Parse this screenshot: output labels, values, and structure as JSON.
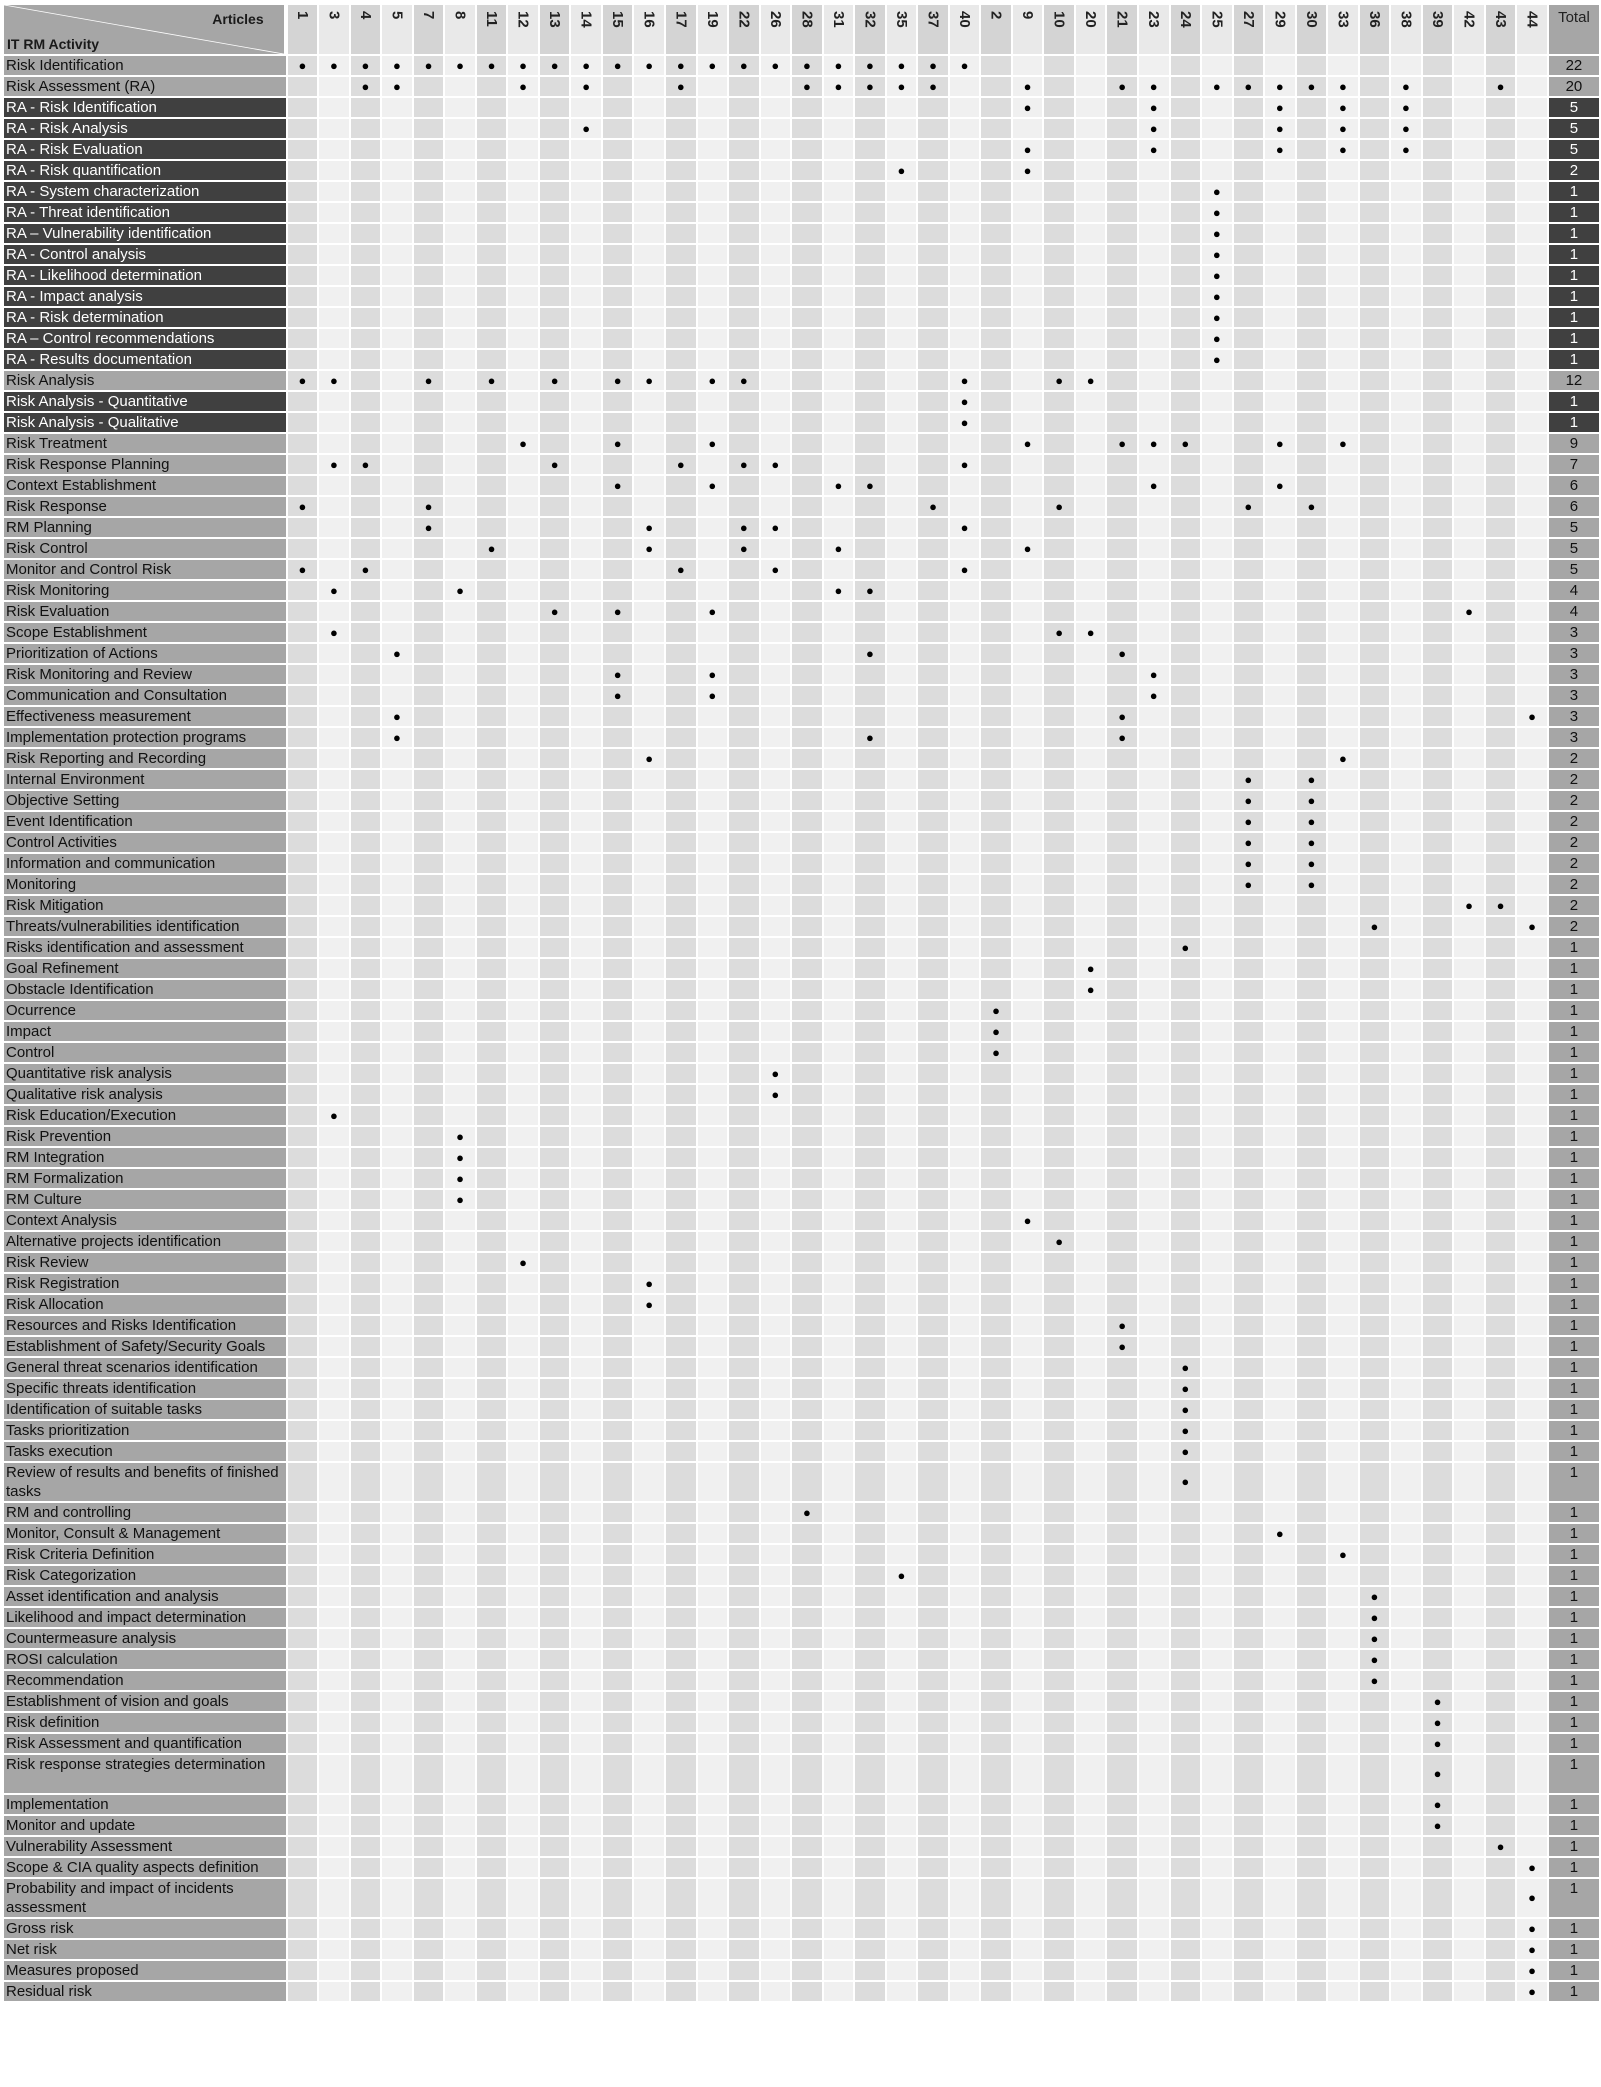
{
  "header": {
    "articles_label": "Articles",
    "activity_label": "IT RM Activity",
    "total_label": "Total"
  },
  "columns": [
    "1",
    "3",
    "4",
    "5",
    "7",
    "8",
    "11",
    "12",
    "13",
    "14",
    "15",
    "16",
    "17",
    "19",
    "22",
    "26",
    "28",
    "31",
    "32",
    "35",
    "37",
    "40",
    "2",
    "9",
    "10",
    "20",
    "21",
    "23",
    "24",
    "25",
    "27",
    "29",
    "30",
    "33",
    "36",
    "38",
    "39",
    "42",
    "43",
    "44"
  ],
  "dot_symbol": "●",
  "colors": {
    "header_gray": "#a6a6a6",
    "dark_row": "#404040",
    "cell_dark": "#dcdcdc",
    "cell_light": "#f0f0f0"
  },
  "rows": [
    {
      "label": "Risk Identification",
      "dark": false,
      "total": "22",
      "dots": [
        1,
        3,
        4,
        5,
        7,
        8,
        11,
        12,
        13,
        14,
        15,
        16,
        17,
        19,
        22,
        26,
        28,
        31,
        32,
        35,
        37,
        40
      ]
    },
    {
      "label": "Risk Assessment (RA)",
      "dark": false,
      "total": "20",
      "dots": [
        4,
        5,
        12,
        14,
        17,
        28,
        31,
        32,
        35,
        37,
        9,
        21,
        23,
        25,
        27,
        29,
        30,
        33,
        38,
        43
      ]
    },
    {
      "label": "RA - Risk Identification",
      "dark": true,
      "total": "5",
      "dots": [
        9,
        23,
        29,
        33,
        38
      ]
    },
    {
      "label": "RA - Risk Analysis",
      "dark": true,
      "total": "5",
      "dots": [
        14,
        23,
        29,
        33,
        38
      ]
    },
    {
      "label": "RA - Risk Evaluation",
      "dark": true,
      "total": "5",
      "dots": [
        9,
        23,
        29,
        33,
        38
      ]
    },
    {
      "label": "RA - Risk quantification",
      "dark": true,
      "total": "2",
      "dots": [
        35,
        9
      ]
    },
    {
      "label": "RA - System characterization",
      "dark": true,
      "total": "1",
      "dots": [
        25
      ]
    },
    {
      "label": "RA - Threat identification",
      "dark": true,
      "total": "1",
      "dots": [
        25
      ]
    },
    {
      "label": "RA – Vulnerability identification",
      "dark": true,
      "total": "1",
      "dots": [
        25
      ]
    },
    {
      "label": "RA - Control analysis",
      "dark": true,
      "total": "1",
      "dots": [
        25
      ]
    },
    {
      "label": "RA - Likelihood determination",
      "dark": true,
      "total": "1",
      "dots": [
        25
      ]
    },
    {
      "label": "RA - Impact analysis",
      "dark": true,
      "total": "1",
      "dots": [
        25
      ]
    },
    {
      "label": "RA - Risk determination",
      "dark": true,
      "total": "1",
      "dots": [
        25
      ]
    },
    {
      "label": "RA – Control recommendations",
      "dark": true,
      "total": "1",
      "dots": [
        25
      ]
    },
    {
      "label": "RA - Results documentation",
      "dark": true,
      "total": "1",
      "dots": [
        25
      ]
    },
    {
      "label": "Risk Analysis",
      "dark": false,
      "total": "12",
      "dots": [
        1,
        3,
        7,
        11,
        13,
        15,
        16,
        19,
        22,
        40,
        10,
        20
      ]
    },
    {
      "label": "Risk Analysis - Quantitative",
      "dark": true,
      "total": "1",
      "dots": [
        40
      ]
    },
    {
      "label": "Risk Analysis - Qualitative",
      "dark": true,
      "total": "1",
      "dots": [
        40
      ]
    },
    {
      "label": "Risk Treatment",
      "dark": false,
      "total": "9",
      "dots": [
        12,
        15,
        19,
        9,
        21,
        23,
        24,
        29,
        33
      ]
    },
    {
      "label": "Risk Response Planning",
      "dark": false,
      "total": "7",
      "dots": [
        3,
        4,
        13,
        17,
        22,
        26,
        40
      ]
    },
    {
      "label": "Context Establishment",
      "dark": false,
      "total": "6",
      "dots": [
        15,
        19,
        31,
        32,
        23,
        29
      ]
    },
    {
      "label": "Risk Response",
      "dark": false,
      "total": "6",
      "dots": [
        1,
        7,
        37,
        10,
        27,
        30
      ]
    },
    {
      "label": "RM Planning",
      "dark": false,
      "total": "5",
      "dots": [
        7,
        16,
        22,
        26,
        40
      ]
    },
    {
      "label": "Risk Control",
      "dark": false,
      "total": "5",
      "dots": [
        11,
        16,
        22,
        31,
        9
      ]
    },
    {
      "label": "Monitor and Control Risk",
      "dark": false,
      "total": "5",
      "dots": [
        1,
        4,
        17,
        26,
        40
      ]
    },
    {
      "label": "Risk Monitoring",
      "dark": false,
      "total": "4",
      "dots": [
        3,
        8,
        31,
        32
      ]
    },
    {
      "label": "Risk Evaluation",
      "dark": false,
      "total": "4",
      "dots": [
        13,
        15,
        19,
        42
      ]
    },
    {
      "label": "Scope Establishment",
      "dark": false,
      "total": "3",
      "dots": [
        3,
        10,
        20
      ]
    },
    {
      "label": "Prioritization of Actions",
      "dark": false,
      "total": "3",
      "dots": [
        5,
        32,
        21
      ]
    },
    {
      "label": "Risk Monitoring and Review",
      "dark": false,
      "total": "3",
      "dots": [
        15,
        19,
        23
      ]
    },
    {
      "label": "Communication and Consultation",
      "dark": false,
      "total": "3",
      "dots": [
        15,
        19,
        23
      ]
    },
    {
      "label": "Effectiveness measurement",
      "dark": false,
      "total": "3",
      "dots": [
        5,
        21,
        44
      ]
    },
    {
      "label": "Implementation protection programs",
      "dark": false,
      "total": "3",
      "dots": [
        5,
        32,
        21
      ]
    },
    {
      "label": "Risk Reporting and Recording",
      "dark": false,
      "total": "2",
      "dots": [
        16,
        33
      ]
    },
    {
      "label": "Internal Environment",
      "dark": false,
      "total": "2",
      "dots": [
        27,
        30
      ]
    },
    {
      "label": "Objective Setting",
      "dark": false,
      "total": "2",
      "dots": [
        27,
        30
      ]
    },
    {
      "label": "Event Identification",
      "dark": false,
      "total": "2",
      "dots": [
        27,
        30
      ]
    },
    {
      "label": "Control Activities",
      "dark": false,
      "total": "2",
      "dots": [
        27,
        30
      ]
    },
    {
      "label": "Information and communication",
      "dark": false,
      "total": "2",
      "dots": [
        27,
        30
      ]
    },
    {
      "label": "Monitoring",
      "dark": false,
      "total": "2",
      "dots": [
        27,
        30
      ]
    },
    {
      "label": "Risk Mitigation",
      "dark": false,
      "total": "2",
      "dots": [
        42,
        43
      ]
    },
    {
      "label": "Threats/vulnerabilities identification",
      "dark": false,
      "total": "2",
      "dots": [
        36,
        44
      ]
    },
    {
      "label": "Risks identification and assessment",
      "dark": false,
      "total": "1",
      "dots": [
        24
      ]
    },
    {
      "label": "Goal Refinement",
      "dark": false,
      "total": "1",
      "dots": [
        20
      ]
    },
    {
      "label": "Obstacle Identification",
      "dark": false,
      "total": "1",
      "dots": [
        20
      ]
    },
    {
      "label": "Ocurrence",
      "dark": false,
      "total": "1",
      "dots": [
        2
      ]
    },
    {
      "label": "Impact",
      "dark": false,
      "total": "1",
      "dots": [
        2
      ]
    },
    {
      "label": "Control",
      "dark": false,
      "total": "1",
      "dots": [
        2
      ]
    },
    {
      "label": "Quantitative risk analysis",
      "dark": false,
      "total": "1",
      "dots": [
        26
      ]
    },
    {
      "label": "Qualitative risk analysis",
      "dark": false,
      "total": "1",
      "dots": [
        26
      ]
    },
    {
      "label": "Risk Education/Execution",
      "dark": false,
      "total": "1",
      "dots": [
        3
      ]
    },
    {
      "label": "Risk Prevention",
      "dark": false,
      "total": "1",
      "dots": [
        8
      ]
    },
    {
      "label": "RM Integration",
      "dark": false,
      "total": "1",
      "dots": [
        8
      ]
    },
    {
      "label": "RM Formalization",
      "dark": false,
      "total": "1",
      "dots": [
        8
      ]
    },
    {
      "label": "RM Culture",
      "dark": false,
      "total": "1",
      "dots": [
        8
      ]
    },
    {
      "label": "Context Analysis",
      "dark": false,
      "total": "1",
      "dots": [
        9
      ]
    },
    {
      "label": "Alternative projects identification",
      "dark": false,
      "total": "1",
      "dots": [
        10
      ]
    },
    {
      "label": "Risk Review",
      "dark": false,
      "total": "1",
      "dots": [
        12
      ]
    },
    {
      "label": "Risk Registration",
      "dark": false,
      "total": "1",
      "dots": [
        16
      ]
    },
    {
      "label": "Risk Allocation",
      "dark": false,
      "total": "1",
      "dots": [
        16
      ]
    },
    {
      "label": "Resources and Risks Identification",
      "dark": false,
      "total": "1",
      "dots": [
        21
      ]
    },
    {
      "label": "Establishment of Safety/Security Goals",
      "dark": false,
      "total": "1",
      "dots": [
        21
      ]
    },
    {
      "label": "General threat scenarios identification",
      "dark": false,
      "total": "1",
      "dots": [
        24
      ]
    },
    {
      "label": "Specific threats identification",
      "dark": false,
      "total": "1",
      "dots": [
        24
      ]
    },
    {
      "label": "Identification of suitable tasks",
      "dark": false,
      "total": "1",
      "dots": [
        24
      ]
    },
    {
      "label": "Tasks prioritization",
      "dark": false,
      "total": "1",
      "dots": [
        24
      ]
    },
    {
      "label": "Tasks execution",
      "dark": false,
      "total": "1",
      "dots": [
        24
      ]
    },
    {
      "label": "Review of results and benefits of finished tasks",
      "dark": false,
      "total": "1",
      "dots": [
        24
      ],
      "tall": true
    },
    {
      "label": "RM and controlling",
      "dark": false,
      "total": "1",
      "dots": [
        28
      ]
    },
    {
      "label": "Monitor, Consult & Management",
      "dark": false,
      "total": "1",
      "dots": [
        29
      ]
    },
    {
      "label": "Risk Criteria Definition",
      "dark": false,
      "total": "1",
      "dots": [
        33
      ]
    },
    {
      "label": "Risk Categorization",
      "dark": false,
      "total": "1",
      "dots": [
        35
      ]
    },
    {
      "label": "Asset identification and analysis",
      "dark": false,
      "total": "1",
      "dots": [
        36
      ]
    },
    {
      "label": "Likelihood and impact determination",
      "dark": false,
      "total": "1",
      "dots": [
        36
      ]
    },
    {
      "label": "Countermeasure analysis",
      "dark": false,
      "total": "1",
      "dots": [
        36
      ]
    },
    {
      "label": "ROSI calculation",
      "dark": false,
      "total": "1",
      "dots": [
        36
      ]
    },
    {
      "label": "Recommendation",
      "dark": false,
      "total": "1",
      "dots": [
        36
      ]
    },
    {
      "label": "Establishment of vision and goals",
      "dark": false,
      "total": "1",
      "dots": [
        39
      ]
    },
    {
      "label": "Risk definition",
      "dark": false,
      "total": "1",
      "dots": [
        39
      ]
    },
    {
      "label": "Risk Assessment and quantification",
      "dark": false,
      "total": "1",
      "dots": [
        39
      ]
    },
    {
      "label": "Risk response strategies determination",
      "dark": false,
      "total": "1",
      "dots": [
        39
      ],
      "tall": true
    },
    {
      "label": "Implementation",
      "dark": false,
      "total": "1",
      "dots": [
        39
      ]
    },
    {
      "label": "Monitor and update",
      "dark": false,
      "total": "1",
      "dots": [
        39
      ]
    },
    {
      "label": "Vulnerability Assessment",
      "dark": false,
      "total": "1",
      "dots": [
        43
      ]
    },
    {
      "label": "Scope & CIA quality aspects definition",
      "dark": false,
      "total": "1",
      "dots": [
        44
      ]
    },
    {
      "label": "Probability and impact of incidents assessment",
      "dark": false,
      "total": "1",
      "dots": [
        44
      ],
      "tall": true
    },
    {
      "label": "Gross risk",
      "dark": false,
      "total": "1",
      "dots": [
        44
      ]
    },
    {
      "label": "Net risk",
      "dark": false,
      "total": "1",
      "dots": [
        44
      ]
    },
    {
      "label": "Measures proposed",
      "dark": false,
      "total": "1",
      "dots": [
        44
      ]
    },
    {
      "label": "Residual risk",
      "dark": false,
      "total": "1",
      "dots": [
        44
      ]
    }
  ]
}
